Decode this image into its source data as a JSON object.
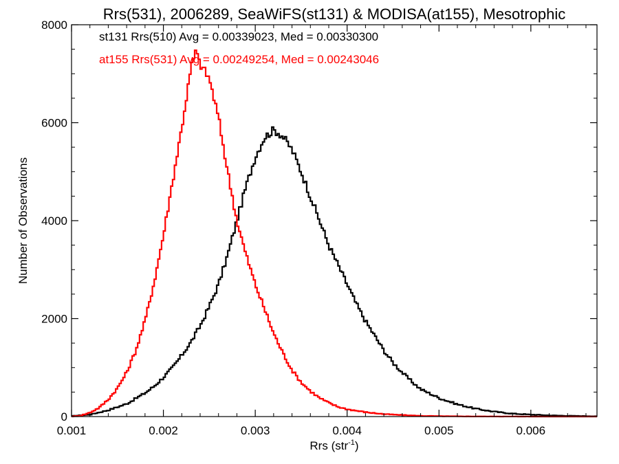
{
  "chart_data": {
    "type": "line",
    "style": "step-histogram",
    "title": "Rrs(531), 2006289, SeaWiFS(st131) & MODISA(at155), Mesotrophic",
    "xlabel": "Rrs (str",
    "xlabel_sup": "-1",
    "xlabel_end": ")",
    "ylabel": "Number of Observations",
    "xlim": [
      0.001,
      0.00672
    ],
    "ylim": [
      0,
      8000
    ],
    "grid": false,
    "x_ticks": [
      0.001,
      0.002,
      0.003,
      0.004,
      0.005,
      0.006
    ],
    "x_tick_labels": [
      "0.001",
      "0.002",
      "0.003",
      "0.004",
      "0.005",
      "0.006"
    ],
    "y_ticks": [
      0,
      2000,
      4000,
      6000,
      8000
    ],
    "y_tick_labels": [
      "0",
      "2000",
      "4000",
      "6000",
      "8000"
    ],
    "annotations": [
      {
        "text": "st131 Rrs(510) Avg = 0.00339023, Med = 0.00330300",
        "color": "#000000"
      },
      {
        "text": "at155 Rrs(531) Avg = 0.00249254, Med = 0.00243046",
        "color": "#ff0000"
      }
    ],
    "series": [
      {
        "color": "#000000",
        "x": [
          0.001,
          0.0012,
          0.0014,
          0.0016,
          0.0018,
          0.0019,
          0.002,
          0.0021,
          0.0022,
          0.0023,
          0.0024,
          0.0025,
          0.0026,
          0.0027,
          0.0028,
          0.0029,
          0.003,
          0.0031,
          0.0032,
          0.00325,
          0.0033,
          0.0034,
          0.0035,
          0.0036,
          0.0037,
          0.0038,
          0.0039,
          0.004,
          0.0041,
          0.0042,
          0.0043,
          0.0044,
          0.0045,
          0.0046,
          0.0047,
          0.0048,
          0.005,
          0.0052,
          0.0054,
          0.0056,
          0.0058,
          0.006,
          0.0062,
          0.0064,
          0.0066,
          0.00672
        ],
        "y": [
          10,
          40,
          130,
          260,
          480,
          620,
          800,
          1000,
          1250,
          1520,
          1850,
          2250,
          2700,
          3300,
          4000,
          4700,
          5300,
          5700,
          5850,
          5800,
          5720,
          5450,
          5000,
          4500,
          4000,
          3500,
          3100,
          2700,
          2300,
          1950,
          1650,
          1350,
          1100,
          900,
          720,
          560,
          380,
          250,
          160,
          100,
          60,
          40,
          25,
          15,
          10,
          5
        ]
      },
      {
        "color": "#ff0000",
        "x": [
          0.001,
          0.0011,
          0.0012,
          0.0013,
          0.0014,
          0.0015,
          0.0016,
          0.0017,
          0.0018,
          0.0019,
          0.002,
          0.0021,
          0.0022,
          0.0023,
          0.00235,
          0.0024,
          0.0025,
          0.0026,
          0.0027,
          0.0028,
          0.0029,
          0.003,
          0.0031,
          0.0032,
          0.0033,
          0.0034,
          0.0035,
          0.0036,
          0.0037,
          0.0038,
          0.0039,
          0.004,
          0.0042,
          0.0044,
          0.0046,
          0.0048,
          0.005,
          0.0052,
          0.0054,
          0.0056,
          0.0058,
          0.006,
          0.00672
        ],
        "y": [
          0,
          20,
          80,
          180,
          350,
          580,
          900,
          1350,
          1950,
          2750,
          3700,
          4800,
          5900,
          7100,
          7450,
          7200,
          6900,
          6100,
          5000,
          4000,
          3300,
          2700,
          2200,
          1700,
          1300,
          950,
          700,
          520,
          380,
          280,
          200,
          150,
          90,
          50,
          30,
          15,
          8,
          5,
          3,
          2,
          1,
          0,
          0
        ]
      }
    ]
  }
}
